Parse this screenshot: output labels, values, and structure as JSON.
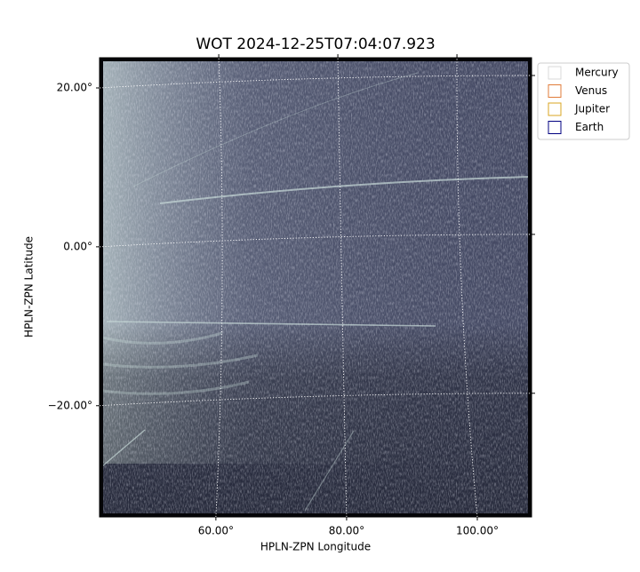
{
  "chart_data": {
    "type": "image",
    "title": "WOT 2024-12-25T07:04:07.923",
    "xlabel": "HPLN-ZPN Longitude",
    "ylabel": "HPLN-ZPN Latitude",
    "xlim": [
      42.2,
      108.3
    ],
    "ylim": [
      -34.0,
      23.8
    ],
    "xticks": [
      {
        "value": 60,
        "label": "60.00°"
      },
      {
        "value": 80,
        "label": "80.00°"
      },
      {
        "value": 100,
        "label": "100.00°"
      }
    ],
    "yticks": [
      {
        "value": -20,
        "label": "−20.00°"
      },
      {
        "value": 0,
        "label": "0.00°"
      },
      {
        "value": 20,
        "label": "20.00°"
      }
    ],
    "grid": true,
    "legend": "outside-upper-right",
    "series": [
      {
        "name": "Mercury",
        "color": "#d9d9d9"
      },
      {
        "name": "Venus",
        "color": "#e07b39"
      },
      {
        "name": "Jupiter",
        "color": "#daa520"
      },
      {
        "name": "Earth",
        "color": "#000080"
      }
    ]
  }
}
